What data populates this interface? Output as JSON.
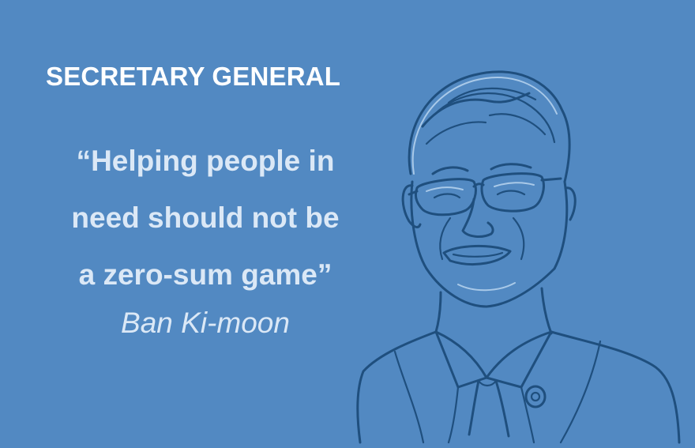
{
  "card": {
    "background_color": "#5289c2",
    "heading": "SECRETARY GENERAL",
    "quote_lines": [
      "“Helping people in",
      "need should not be",
      "a zero-sum game”"
    ],
    "author": "Ban Ki-moon"
  },
  "portrait": {
    "icon": "portrait-illustration-icon",
    "line_color": "#1f4f7e"
  }
}
